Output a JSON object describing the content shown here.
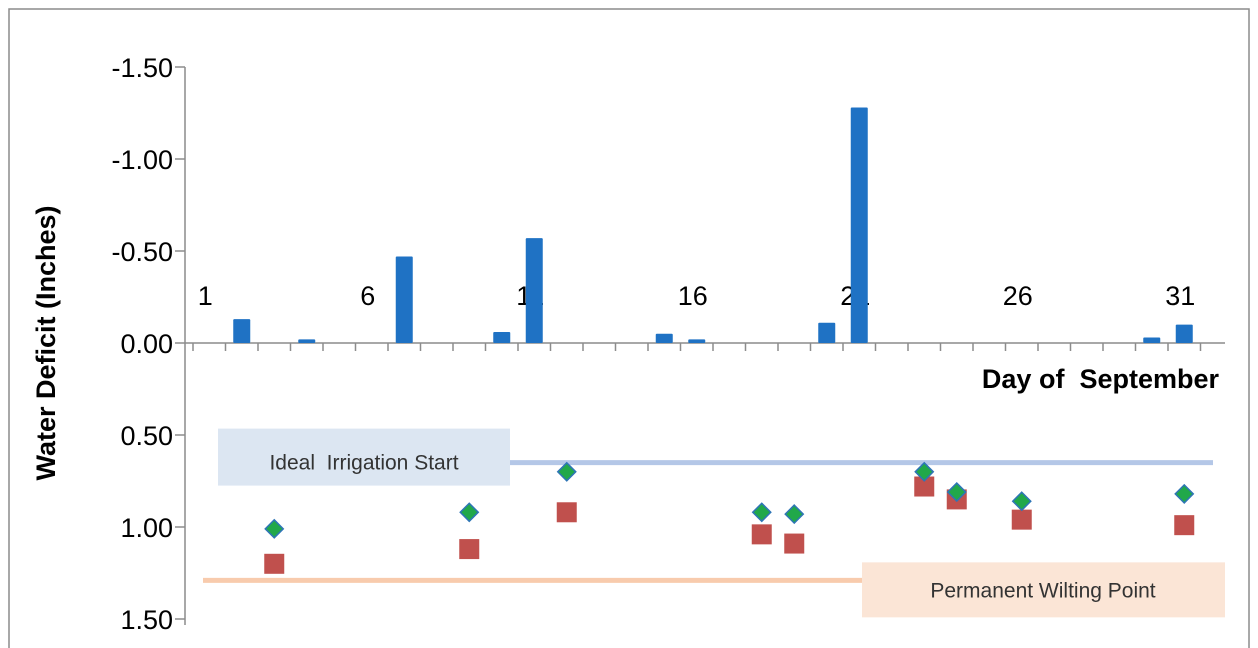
{
  "chart_data": {
    "type": "bar",
    "title": "",
    "xlabel": "Day of  September",
    "ylabel": "Water Deficit (Inches)",
    "y_axis_reversed": true,
    "ylim": [
      -1.5,
      1.5
    ],
    "y_tick_values": [
      -1.5,
      -1.0,
      -0.5,
      0.0,
      0.5,
      1.0,
      1.5
    ],
    "y_tick_labels": [
      "-1.50",
      "-1.00",
      "-0.50",
      "0.00",
      "0.50",
      "1.00",
      "1.50"
    ],
    "x_range": [
      1,
      31
    ],
    "x_tick_labels": [
      "1",
      "6",
      "11",
      "16",
      "21",
      "26",
      "31"
    ],
    "x_tick_label_days": [
      1,
      6,
      11,
      16,
      21,
      26,
      31
    ],
    "grid": false,
    "legend": "none",
    "bar_series": {
      "color": "#1f72c4",
      "points": [
        {
          "x": 2,
          "y": -0.13
        },
        {
          "x": 4,
          "y": -0.02
        },
        {
          "x": 7,
          "y": -0.47
        },
        {
          "x": 10,
          "y": -0.06
        },
        {
          "x": 11,
          "y": -0.57
        },
        {
          "x": 15,
          "y": -0.05
        },
        {
          "x": 16,
          "y": -0.02
        },
        {
          "x": 20,
          "y": -0.11
        },
        {
          "x": 21,
          "y": -1.28
        },
        {
          "x": 30,
          "y": -0.03
        },
        {
          "x": 31,
          "y": -0.1
        }
      ]
    },
    "diamond_series": {
      "color": "#21a84a",
      "stroke": "#2e75b6",
      "points": [
        {
          "x": 3,
          "y": 1.01
        },
        {
          "x": 9,
          "y": 0.92
        },
        {
          "x": 12,
          "y": 0.7
        },
        {
          "x": 18,
          "y": 0.92
        },
        {
          "x": 19,
          "y": 0.93
        },
        {
          "x": 23,
          "y": 0.7
        },
        {
          "x": 24,
          "y": 0.81
        },
        {
          "x": 26,
          "y": 0.86
        },
        {
          "x": 31,
          "y": 0.82
        }
      ]
    },
    "square_series": {
      "color": "#c0504d",
      "points": [
        {
          "x": 3,
          "y": 1.2
        },
        {
          "x": 9,
          "y": 1.12
        },
        {
          "x": 12,
          "y": 0.92
        },
        {
          "x": 18,
          "y": 1.04
        },
        {
          "x": 19,
          "y": 1.09
        },
        {
          "x": 23,
          "y": 0.78
        },
        {
          "x": 24,
          "y": 0.85
        },
        {
          "x": 26,
          "y": 0.96
        },
        {
          "x": 31,
          "y": 0.99
        }
      ]
    },
    "reference_lines": [
      {
        "label": "Ideal  Irrigation Start",
        "y": 0.65,
        "color": "#b4c7e7",
        "label_bg": "#dce6f2"
      },
      {
        "label": "Permanent Wilting Point",
        "y": 1.29,
        "color": "#f8cbad",
        "label_bg": "#fbe5d6"
      }
    ]
  }
}
